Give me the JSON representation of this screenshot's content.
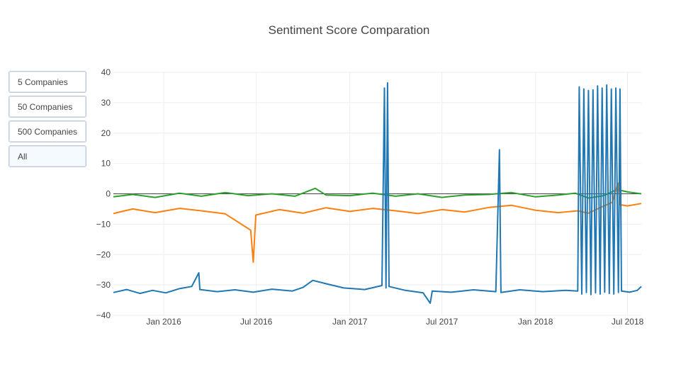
{
  "title": "Sentiment Score Comparation",
  "buttons": [
    {
      "label": "5 Companies",
      "active": false
    },
    {
      "label": "50 Companies",
      "active": false
    },
    {
      "label": "500 Companies",
      "active": false
    },
    {
      "label": "All",
      "active": true
    }
  ],
  "chart_data": {
    "type": "line",
    "title": "Sentiment Score Comparation",
    "xlabel": "",
    "ylabel": "",
    "x_range": [
      "2015-09-24",
      "2018-07-28"
    ],
    "y_range": [
      -40,
      40
    ],
    "y_ticks": [
      -40,
      -30,
      -20,
      -10,
      0,
      10,
      20,
      30,
      40
    ],
    "y_tick_labels": [
      "−40",
      "−30",
      "−20",
      "−10",
      "0",
      "10",
      "20",
      "30",
      "40"
    ],
    "x_ticks": [
      "2016-01-01",
      "2016-07-01",
      "2017-01-01",
      "2017-07-01",
      "2018-01-01",
      "2018-07-01"
    ],
    "x_tick_labels": [
      "Jan 2016",
      "Jul 2016",
      "Jan 2017",
      "Jul 2017",
      "Jan 2018",
      "Jul 2018"
    ],
    "grid": true,
    "legend": "none",
    "series": [
      {
        "color": "#1f77b4",
        "points": [
          [
            "2015-09-24",
            -32.5
          ],
          [
            "2015-10-20",
            -31.5
          ],
          [
            "2015-11-15",
            -32.8
          ],
          [
            "2015-12-10",
            -31.8
          ],
          [
            "2016-01-05",
            -32.6
          ],
          [
            "2016-02-01",
            -31.2
          ],
          [
            "2016-02-25",
            -30.5
          ],
          [
            "2016-03-10",
            -26.0
          ],
          [
            "2016-03-12",
            -31.5
          ],
          [
            "2016-04-15",
            -32.2
          ],
          [
            "2016-05-20",
            -31.6
          ],
          [
            "2016-06-25",
            -32.4
          ],
          [
            "2016-08-01",
            -31.4
          ],
          [
            "2016-09-10",
            -32.0
          ],
          [
            "2016-10-01",
            -30.8
          ],
          [
            "2016-10-20",
            -28.5
          ],
          [
            "2016-11-15",
            -29.6
          ],
          [
            "2016-12-20",
            -31.0
          ],
          [
            "2017-01-30",
            -31.5
          ],
          [
            "2017-03-05",
            -30.2
          ],
          [
            "2017-03-10",
            34.8
          ],
          [
            "2017-03-13",
            -31.0
          ],
          [
            "2017-03-16",
            36.5
          ],
          [
            "2017-03-19",
            -30.5
          ],
          [
            "2017-04-20",
            -31.8
          ],
          [
            "2017-05-25",
            -32.6
          ],
          [
            "2017-06-08",
            -36.0
          ],
          [
            "2017-06-12",
            -32.0
          ],
          [
            "2017-07-20",
            -32.4
          ],
          [
            "2017-09-01",
            -31.6
          ],
          [
            "2017-10-15",
            -32.2
          ],
          [
            "2017-10-22",
            14.5
          ],
          [
            "2017-10-25",
            -32.5
          ],
          [
            "2017-12-01",
            -31.6
          ],
          [
            "2018-01-15",
            -32.2
          ],
          [
            "2018-03-01",
            -31.8
          ],
          [
            "2018-03-25",
            -32.0
          ],
          [
            "2018-03-28",
            35.2
          ],
          [
            "2018-04-02",
            -33.0
          ],
          [
            "2018-04-06",
            34.5
          ],
          [
            "2018-04-11",
            -32.5
          ],
          [
            "2018-04-15",
            34.0
          ],
          [
            "2018-04-20",
            -33.2
          ],
          [
            "2018-04-24",
            34.2
          ],
          [
            "2018-04-29",
            -32.6
          ],
          [
            "2018-05-03",
            35.5
          ],
          [
            "2018-05-08",
            -33.0
          ],
          [
            "2018-05-12",
            34.8
          ],
          [
            "2018-05-17",
            -32.4
          ],
          [
            "2018-05-21",
            35.8
          ],
          [
            "2018-05-26",
            -32.8
          ],
          [
            "2018-05-30",
            34.5
          ],
          [
            "2018-06-04",
            -33.0
          ],
          [
            "2018-06-08",
            34.8
          ],
          [
            "2018-06-13",
            -32.5
          ],
          [
            "2018-06-16",
            34.5
          ],
          [
            "2018-06-19",
            -32.0
          ],
          [
            "2018-07-05",
            -32.4
          ],
          [
            "2018-07-20",
            -31.8
          ],
          [
            "2018-07-28",
            -30.5
          ]
        ]
      },
      {
        "color": "#ff7f0e",
        "points": [
          [
            "2015-09-24",
            -6.5
          ],
          [
            "2015-11-01",
            -5.0
          ],
          [
            "2015-12-15",
            -6.2
          ],
          [
            "2016-02-01",
            -4.8
          ],
          [
            "2016-03-15",
            -5.6
          ],
          [
            "2016-05-01",
            -6.6
          ],
          [
            "2016-06-20",
            -12.0
          ],
          [
            "2016-06-25",
            -22.5
          ],
          [
            "2016-06-30",
            -7.0
          ],
          [
            "2016-08-15",
            -5.2
          ],
          [
            "2016-10-01",
            -6.4
          ],
          [
            "2016-11-15",
            -4.6
          ],
          [
            "2017-01-01",
            -5.8
          ],
          [
            "2017-02-15",
            -4.8
          ],
          [
            "2017-04-01",
            -5.6
          ],
          [
            "2017-05-15",
            -6.5
          ],
          [
            "2017-07-01",
            -5.2
          ],
          [
            "2017-08-15",
            -6.0
          ],
          [
            "2017-10-01",
            -4.5
          ],
          [
            "2017-11-15",
            -3.8
          ],
          [
            "2018-01-01",
            -5.4
          ],
          [
            "2018-02-15",
            -6.2
          ],
          [
            "2018-03-25",
            -5.6
          ],
          [
            "2018-04-15",
            -6.4
          ],
          [
            "2018-05-10",
            -4.4
          ],
          [
            "2018-06-01",
            -2.8
          ],
          [
            "2018-06-12",
            3.5
          ],
          [
            "2018-06-16",
            -3.6
          ],
          [
            "2018-07-01",
            -4.0
          ],
          [
            "2018-07-28",
            -3.2
          ]
        ]
      },
      {
        "color": "#2ca02c",
        "points": [
          [
            "2015-09-24",
            -1.0
          ],
          [
            "2015-11-01",
            -0.2
          ],
          [
            "2015-12-15",
            -1.2
          ],
          [
            "2016-02-01",
            0.2
          ],
          [
            "2016-03-15",
            -0.8
          ],
          [
            "2016-05-01",
            0.4
          ],
          [
            "2016-06-15",
            -0.6
          ],
          [
            "2016-08-01",
            0.0
          ],
          [
            "2016-09-15",
            -0.8
          ],
          [
            "2016-10-25",
            1.8
          ],
          [
            "2016-11-15",
            -0.4
          ],
          [
            "2017-01-01",
            -0.6
          ],
          [
            "2017-02-15",
            0.2
          ],
          [
            "2017-04-01",
            -0.8
          ],
          [
            "2017-05-15",
            0.0
          ],
          [
            "2017-07-01",
            -1.2
          ],
          [
            "2017-08-15",
            -0.4
          ],
          [
            "2017-10-01",
            -0.2
          ],
          [
            "2017-11-15",
            0.4
          ],
          [
            "2018-01-01",
            -1.0
          ],
          [
            "2018-02-15",
            -0.4
          ],
          [
            "2018-03-20",
            0.2
          ],
          [
            "2018-04-15",
            -1.4
          ],
          [
            "2018-05-15",
            -0.6
          ],
          [
            "2018-06-10",
            1.4
          ],
          [
            "2018-07-01",
            0.6
          ],
          [
            "2018-07-28",
            0.0
          ]
        ]
      }
    ]
  }
}
